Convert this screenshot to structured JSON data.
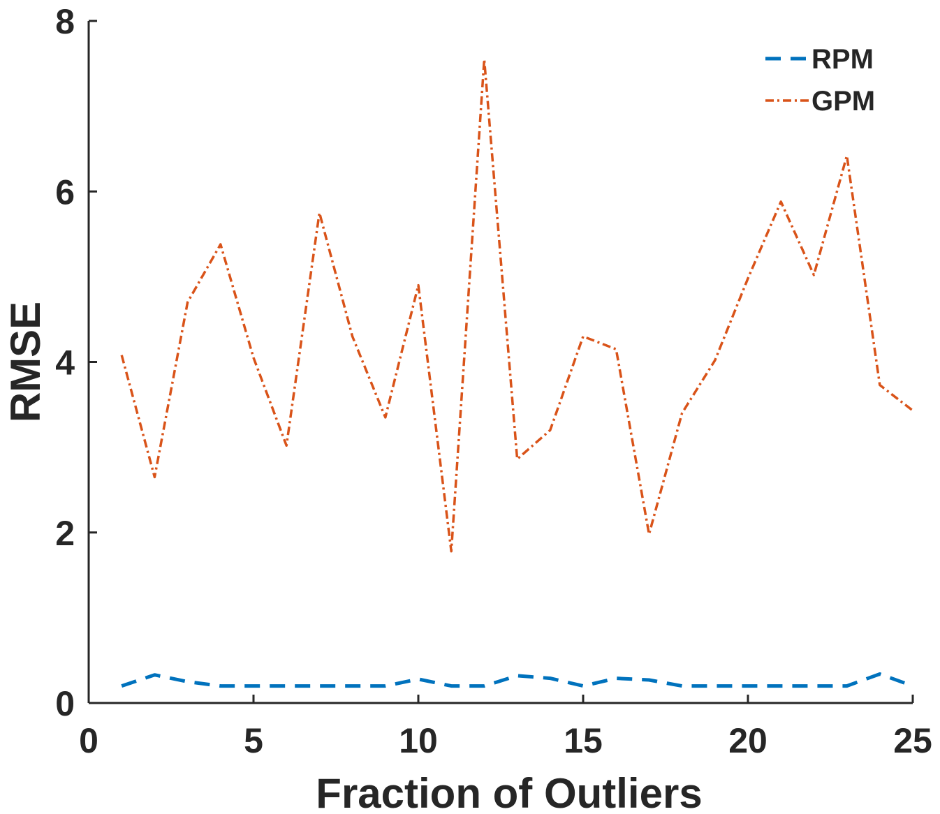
{
  "chart_data": {
    "type": "line",
    "title": "",
    "xlabel": "Fraction of Outliers",
    "ylabel": "RMSE",
    "xlim": [
      0,
      25
    ],
    "ylim": [
      0,
      8
    ],
    "xticks": [
      0,
      5,
      10,
      15,
      20,
      25
    ],
    "yticks": [
      0,
      2,
      4,
      6,
      8
    ],
    "grid": false,
    "legend_position": "top-right",
    "x": [
      1,
      2,
      3,
      4,
      5,
      6,
      7,
      8,
      9,
      10,
      11,
      12,
      13,
      14,
      15,
      16,
      17,
      18,
      19,
      20,
      21,
      22,
      23,
      24,
      25
    ],
    "series": [
      {
        "name": "RPM",
        "color": "#0072BD",
        "line_style": "dashed",
        "values": [
          0.2,
          0.33,
          0.25,
          0.2,
          0.2,
          0.2,
          0.2,
          0.2,
          0.2,
          0.28,
          0.2,
          0.2,
          0.32,
          0.29,
          0.2,
          0.29,
          0.27,
          0.2,
          0.2,
          0.2,
          0.2,
          0.2,
          0.2,
          0.34,
          0.2
        ]
      },
      {
        "name": "GPM",
        "color": "#D95319",
        "line_style": "dash-dot",
        "values": [
          4.08,
          2.65,
          4.7,
          5.38,
          4.05,
          3.02,
          5.75,
          4.3,
          3.35,
          4.9,
          1.78,
          7.55,
          2.86,
          3.2,
          4.3,
          4.15,
          1.98,
          3.4,
          4.02,
          4.98,
          5.88,
          5.02,
          6.42,
          3.73,
          3.43
        ]
      }
    ]
  }
}
